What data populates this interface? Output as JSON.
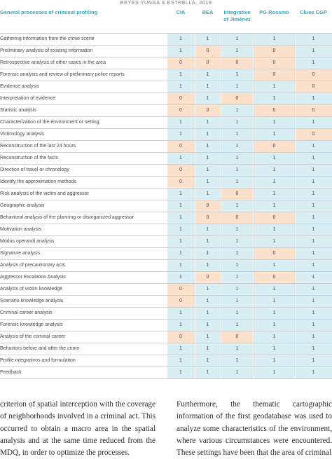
{
  "running_head": "REYES YUNGA & ESTRELLA, 2019",
  "table": {
    "columns": [
      "General processes of criminal profiling",
      "CIA",
      "BEA",
      "Integrative of Jiménez",
      "PG Rossmo",
      "Clues CGP"
    ],
    "rows": [
      {
        "process": "Gathering information from the crime scene",
        "values": [
          1,
          1,
          1,
          1,
          1
        ]
      },
      {
        "process": "Preliminary analysis of existing information",
        "values": [
          1,
          0,
          1,
          0,
          1
        ]
      },
      {
        "process": "Retrospective analysis of other cases in the area",
        "values": [
          0,
          0,
          0,
          0,
          1
        ]
      },
      {
        "process": "Forensic analysis and review of preliminary police reports",
        "values": [
          1,
          1,
          1,
          0,
          0
        ]
      },
      {
        "process": "Evidence analysis",
        "values": [
          1,
          1,
          1,
          1,
          0
        ]
      },
      {
        "process": "Interpretation of evidence",
        "values": [
          0,
          1,
          0,
          1,
          1
        ]
      },
      {
        "process": "Statistic analysis",
        "values": [
          0,
          0,
          1,
          0,
          0
        ]
      },
      {
        "process": "Characterization of the environment or setting",
        "values": [
          1,
          1,
          1,
          1,
          1
        ]
      },
      {
        "process": "Victimology analysis",
        "values": [
          1,
          1,
          1,
          1,
          0
        ]
      },
      {
        "process": "Reconstruction of the last 24 hours",
        "values": [
          0,
          1,
          1,
          0,
          1
        ]
      },
      {
        "process": "Reconstruction of the facts",
        "values": [
          1,
          1,
          1,
          1,
          1
        ]
      },
      {
        "process": "Direction of travel or chronology",
        "values": [
          0,
          1,
          1,
          1,
          1
        ]
      },
      {
        "process": "Identify the approximation methods",
        "values": [
          0,
          1,
          1,
          1,
          1
        ]
      },
      {
        "process": "Risk analysis of the victim and aggressor",
        "values": [
          1,
          1,
          0,
          1,
          1
        ]
      },
      {
        "process": "Geographic analysis",
        "values": [
          1,
          0,
          1,
          1,
          1
        ]
      },
      {
        "process": "Behavioral analysis of the planning or disorganized aggressor",
        "values": [
          1,
          0,
          0,
          0,
          1
        ]
      },
      {
        "process": "Motivation analysis",
        "values": [
          1,
          1,
          1,
          1,
          1
        ]
      },
      {
        "process": "Modus operandi analysis",
        "values": [
          1,
          1,
          1,
          1,
          1
        ]
      },
      {
        "process": "Signature analysis",
        "values": [
          1,
          1,
          1,
          0,
          1
        ]
      },
      {
        "process": "Analysis of precautionary acts",
        "values": [
          1,
          1,
          1,
          1,
          1
        ]
      },
      {
        "process": "Aggressor Escalation Analysis",
        "values": [
          1,
          0,
          1,
          0,
          1
        ]
      },
      {
        "process": "Analysis of victim knowledge",
        "values": [
          0,
          1,
          1,
          1,
          1
        ]
      },
      {
        "process": "Scenario knowledge analysis",
        "values": [
          0,
          1,
          1,
          1,
          1
        ]
      },
      {
        "process": "Criminal career analysis",
        "values": [
          1,
          1,
          1,
          1,
          1
        ]
      },
      {
        "process": "Forensic knowledge analysis",
        "values": [
          1,
          1,
          1,
          1,
          1
        ]
      },
      {
        "process": "Analysis of the criminal career",
        "values": [
          0,
          1,
          0,
          1,
          1
        ]
      },
      {
        "process": "Behaviors before and after the crime",
        "values": [
          1,
          1,
          1,
          1,
          1
        ]
      },
      {
        "process": "Profile integrativos and formulation",
        "values": [
          1,
          1,
          1,
          1,
          1
        ]
      },
      {
        "process": "Feedback",
        "values": [
          1,
          1,
          1,
          1,
          1
        ]
      }
    ]
  },
  "body_text": {
    "left": "criterion of spatial interception with the coverage of neighborhoods involved in a criminal act. This occurred to obtain a macro area in the spatial analysis and at the same time reduced from the MDQ, in order to optimize the processes.",
    "right": "Furthermore, the thematic cartographic information of the first geodatabase was used to analyze some characteristics of the environment, where various circumstances were encountered. These settings have been that the area of criminal"
  },
  "colors": {
    "header_text": "#3aa6bd",
    "value_one_fill": "#d8eef2",
    "value_zero_fill": "#fbe1cc"
  }
}
